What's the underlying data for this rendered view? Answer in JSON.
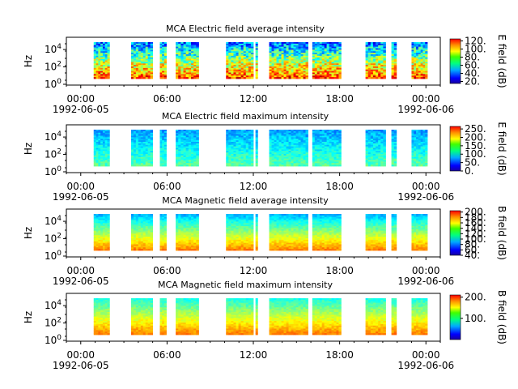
{
  "chart_data": [
    {
      "type": "heatmap",
      "title": "MCA  Electric field average intensity",
      "ylabel": "Hz",
      "colorbar_label": "E field (dB)",
      "colorbar_ticks": [
        "20.",
        "40.",
        "60.",
        "80.",
        "100.",
        "120."
      ],
      "colorbar_range": [
        15,
        125
      ],
      "y_log": true,
      "yticks": [
        "10^0",
        "10^2",
        "10^4"
      ],
      "xticks": [
        "00:00",
        "06:00",
        "12:00",
        "18:00",
        "00:00"
      ],
      "xdates": [
        "1992-06-05",
        "1992-06-06"
      ],
      "intensity_level": 0.55
    },
    {
      "type": "heatmap",
      "title": "MCA  Electric field maximum intensity",
      "ylabel": "Hz",
      "colorbar_label": "E field (dB)",
      "colorbar_ticks": [
        "0.",
        "50.",
        "100.",
        "150.",
        "200.",
        "250."
      ],
      "colorbar_range": [
        0,
        265
      ],
      "y_log": true,
      "yticks": [
        "10^0",
        "10^2",
        "10^4"
      ],
      "xticks": [
        "00:00",
        "06:00",
        "12:00",
        "18:00",
        "00:00"
      ],
      "xdates": [
        "1992-06-05",
        "1992-06-06"
      ],
      "intensity_level": 0.38
    },
    {
      "type": "heatmap",
      "title": "MCA  Magnetic field average intensity",
      "ylabel": "Hz",
      "colorbar_label": "B field (dB)",
      "colorbar_ticks": [
        "40.",
        "60.",
        "80.",
        "100.",
        "120.",
        "140.",
        "160.",
        "180.",
        "200."
      ],
      "colorbar_range": [
        40,
        205
      ],
      "y_log": true,
      "yticks": [
        "10^0",
        "10^2",
        "10^4"
      ],
      "xticks": [
        "00:00",
        "06:00",
        "12:00",
        "18:00",
        "00:00"
      ],
      "xdates": [
        "1992-06-05",
        "1992-06-06"
      ],
      "intensity_level": 0.5
    },
    {
      "type": "heatmap",
      "title": "MCA  Magnetic field maximum intensity",
      "ylabel": "Hz",
      "colorbar_label": "B field (dB)",
      "colorbar_ticks": [
        "100.",
        "200."
      ],
      "colorbar_range": [
        0,
        210
      ],
      "y_log": true,
      "yticks": [
        "10^0",
        "10^2",
        "10^4"
      ],
      "xticks": [
        "00:00",
        "06:00",
        "12:00",
        "18:00",
        "00:00"
      ],
      "xdates": [
        "1992-06-05",
        "1992-06-06"
      ],
      "intensity_level": 0.5
    }
  ],
  "data_intervals_hours": [
    [
      0.9,
      2.0
    ],
    [
      3.5,
      5.0
    ],
    [
      5.5,
      5.95
    ],
    [
      6.6,
      8.2
    ],
    [
      10.1,
      12.0
    ],
    [
      12.15,
      12.3
    ],
    [
      13.1,
      15.8
    ],
    [
      16.1,
      18.1
    ],
    [
      19.8,
      21.2
    ],
    [
      21.6,
      21.95
    ],
    [
      23.0,
      24.1
    ]
  ],
  "x_range_hours": [
    -1,
    25
  ]
}
